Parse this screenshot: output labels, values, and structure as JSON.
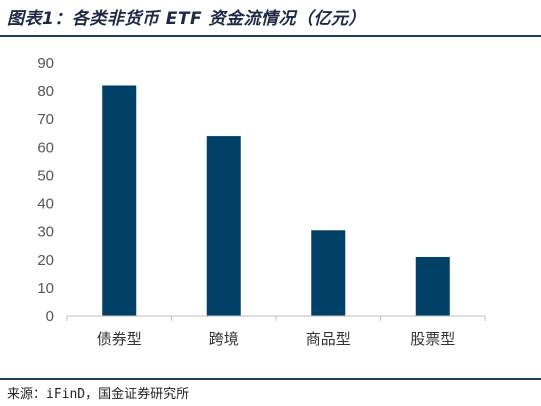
{
  "header": {
    "title": "图表1：各类非货币 ETF 资金流情况（亿元）"
  },
  "footer": {
    "source": "来源：iFinD，国金证券研究所"
  },
  "colors": {
    "bar": "#004066",
    "axis": "#bfbfbf",
    "rule": "#1a4063"
  },
  "chart_data": {
    "type": "bar",
    "title": "",
    "xlabel": "",
    "ylabel": "",
    "categories": [
      "债券型",
      "跨境",
      "商品型",
      "股票型"
    ],
    "values": [
      82,
      64,
      30.5,
      21
    ],
    "ylim": [
      0,
      90
    ],
    "yticks": [
      0,
      10,
      20,
      30,
      40,
      50,
      60,
      70,
      80,
      90
    ],
    "grid": false,
    "legend": "none"
  }
}
